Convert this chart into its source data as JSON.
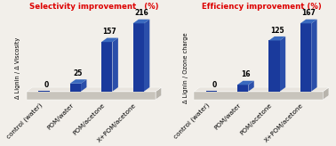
{
  "chart1": {
    "title": "Selectivity improvement   (%)",
    "ylabel": "Δ Lignin / Δ Viscosity",
    "categories": [
      "control (water)",
      "POM/water",
      "POM/acetone",
      "X+POM/acetone"
    ],
    "values": [
      0,
      25,
      157,
      216
    ]
  },
  "chart2": {
    "title": "Efficiency improvement (%)",
    "ylabel": "Δ Lignin / Ozone charge",
    "categories": [
      "control (water)",
      "POM/water",
      "POM/acetone",
      "X+POM/acetone"
    ],
    "values": [
      0,
      16,
      125,
      167
    ]
  },
  "title_color": "#dd0000",
  "bar_front_color": "#1a3a9c",
  "bar_side_color": "#2b4faa",
  "bar_top_color": "#3a6abf",
  "platform_top_color": "#e8e4de",
  "platform_front_color": "#c8c4bc",
  "platform_right_color": "#b8b4ac",
  "background_color": "#f2efea",
  "label_fontsize": 5.2,
  "title_fontsize": 6.2,
  "value_fontsize": 5.5,
  "ylabel_fontsize": 4.8
}
